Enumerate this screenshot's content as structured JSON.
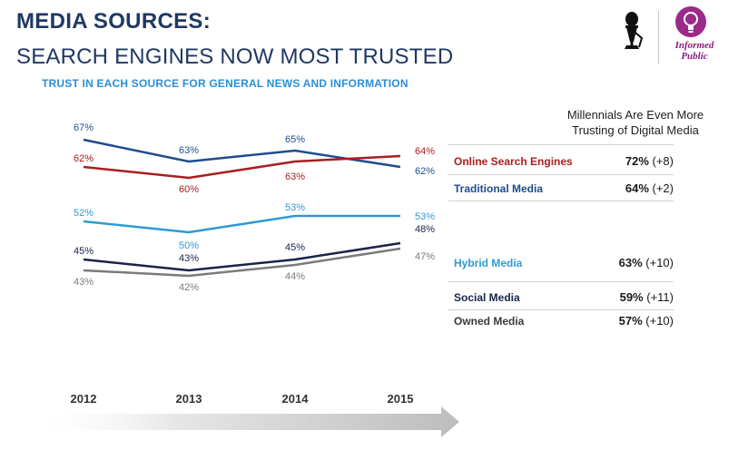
{
  "header": {
    "title": "MEDIA SOURCES:",
    "subtitle_line": "SEARCH ENGINES NOW MOST TRUSTED",
    "caption": "TRUST IN EACH SOURCE FOR GENERAL NEWS AND INFORMATION"
  },
  "logo": {
    "line1": "Informed",
    "line2": "Public",
    "icons": [
      "microphone-icon",
      "lightbulb-icon"
    ],
    "bulb_color": "#9b2a8a"
  },
  "chart_data": {
    "type": "line",
    "x": [
      "2012",
      "2013",
      "2014",
      "2015"
    ],
    "series": [
      {
        "name": "Traditional Media",
        "values": [
          67,
          63,
          65,
          62
        ],
        "color": "#1f4e8c",
        "labels": [
          "67%",
          "63%",
          "65%",
          "62%"
        ]
      },
      {
        "name": "Online Search Engines",
        "values": [
          62,
          60,
          63,
          64
        ],
        "color": "#a6201f",
        "labels": [
          "62%",
          "60%",
          "63%",
          "64%"
        ]
      },
      {
        "name": "Hybrid Media",
        "values": [
          52,
          50,
          53,
          53
        ],
        "color": "#2e9bd6",
        "labels": [
          "52%",
          "50%",
          "53%",
          "53%"
        ]
      },
      {
        "name": "Social Media",
        "values": [
          45,
          43,
          45,
          48
        ],
        "color": "#17244a",
        "labels": [
          "45%",
          "43%",
          "45%",
          "48%"
        ]
      },
      {
        "name": "Owned Media",
        "values": [
          43,
          42,
          44,
          47
        ],
        "color": "#7b7b7b",
        "labels": [
          "43%",
          "42%",
          "44%",
          "47%"
        ]
      }
    ]
  },
  "millennials": {
    "title_line1": "Millennials Are Even More",
    "title_line2": "Trusting of Digital Media",
    "rows": [
      {
        "name": "Online Search Engines",
        "value": "72%",
        "change": "(+8)",
        "color": "#a6201f"
      },
      {
        "name": "Traditional Media",
        "value": "64%",
        "change": "(+2)",
        "color": "#1f4e8c"
      },
      {
        "name": "Hybrid Media",
        "value": "63%",
        "change": "(+10)",
        "color": "#2e9bd6"
      },
      {
        "name": "Social Media",
        "value": "59%",
        "change": "(+11)",
        "color": "#17244a"
      },
      {
        "name": "Owned Media",
        "value": "57%",
        "change": "(+10)",
        "color": "#3a3a3a"
      }
    ]
  }
}
